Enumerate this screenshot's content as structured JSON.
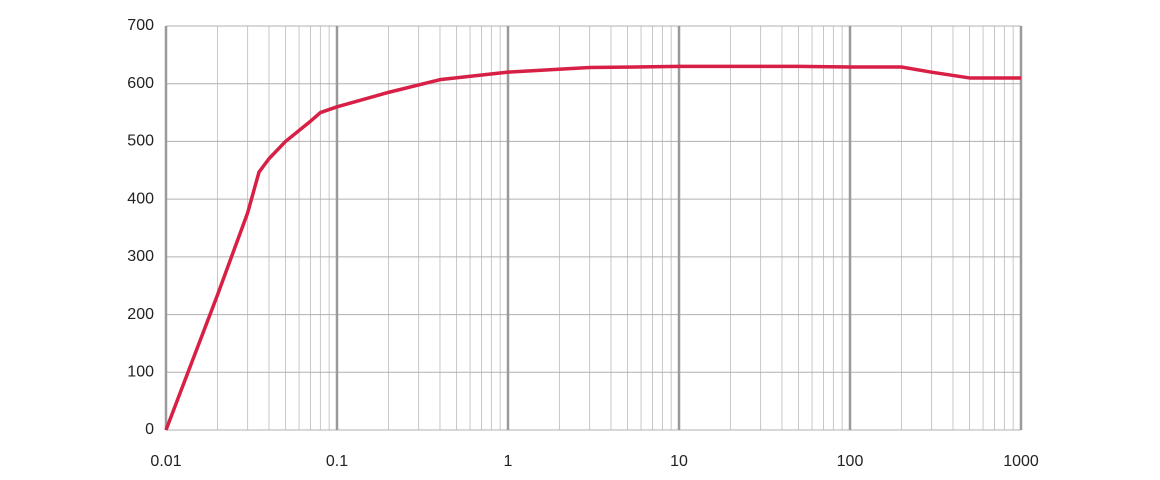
{
  "chart_data": {
    "type": "line",
    "log_x": true,
    "grid": true,
    "x": [
      0.01,
      0.02,
      0.03,
      0.035,
      0.04,
      0.05,
      0.07,
      0.08,
      0.1,
      0.2,
      0.4,
      1,
      3,
      10,
      50,
      100,
      200,
      300,
      500,
      1000
    ],
    "series": [
      {
        "color": "#d81f45",
        "values": [
          0,
          234,
          376,
          447,
          470,
          500,
          535,
          550,
          560,
          585,
          607,
          620,
          628,
          630,
          630,
          629,
          629,
          620,
          610,
          610
        ]
      }
    ],
    "xlim": [
      0.01,
      1000
    ],
    "xticks": [
      0.01,
      0.1,
      1,
      10,
      100,
      1000
    ],
    "ylim": [
      0,
      700
    ],
    "yticks": [
      0,
      100,
      200,
      300,
      400,
      500,
      600,
      700
    ]
  }
}
